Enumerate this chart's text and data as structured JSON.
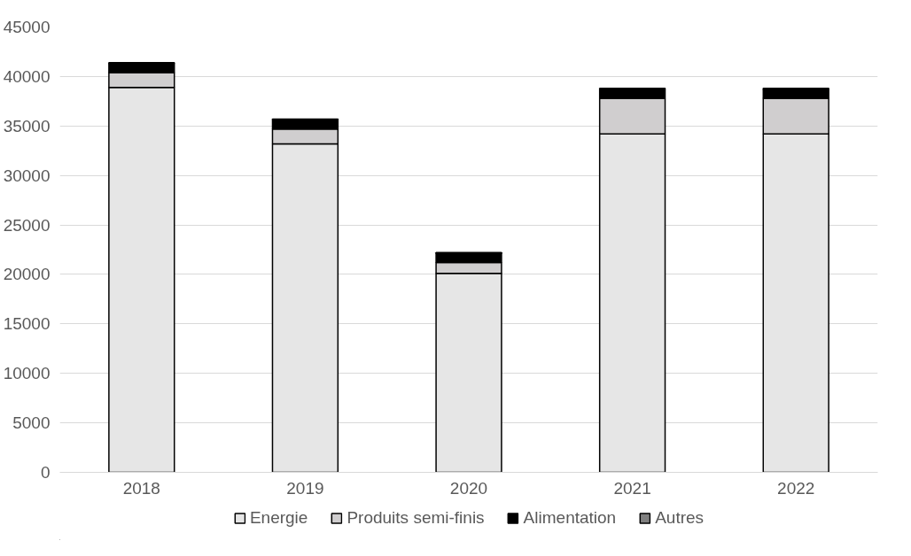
{
  "chart_data": {
    "type": "bar",
    "stacked": true,
    "categories": [
      "2018",
      "2019",
      "2020",
      "2021",
      "2022"
    ],
    "series": [
      {
        "name": "Energie",
        "color": "#e6e6e6",
        "values": [
          38900,
          33200,
          20100,
          34200,
          34200
        ]
      },
      {
        "name": "Produits semi-finis",
        "color": "#d0cecf",
        "values": [
          1500,
          1500,
          1100,
          3600,
          3600
        ]
      },
      {
        "name": "Alimentation",
        "color": "#000000",
        "values": [
          900,
          900,
          900,
          900,
          900
        ]
      },
      {
        "name": "Autres",
        "color": "#808080",
        "values": [
          100,
          100,
          100,
          100,
          100
        ]
      }
    ],
    "ylim": [
      0,
      45000
    ],
    "yticks": [
      0,
      5000,
      10000,
      15000,
      20000,
      25000,
      30000,
      35000,
      40000,
      45000
    ],
    "grid": "y",
    "legend": "bottom"
  }
}
